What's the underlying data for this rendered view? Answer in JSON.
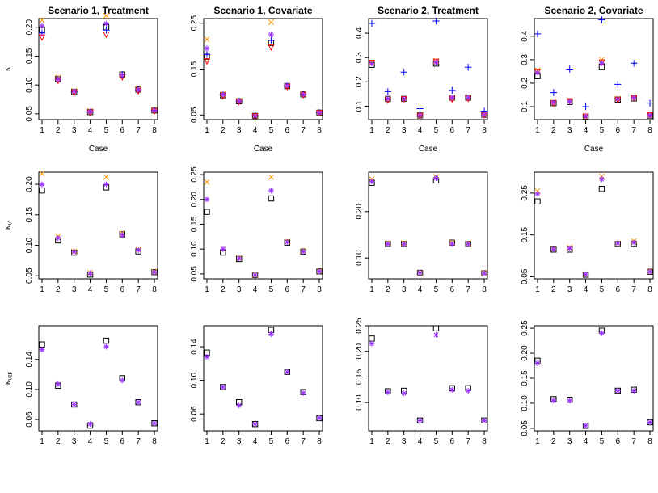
{
  "figure": {
    "row_ylabels": [
      {
        "main": "κ",
        "sub": ""
      },
      {
        "main": "κ",
        "sub": "V"
      },
      {
        "main": "κ",
        "sub": "VIF"
      }
    ]
  },
  "chart_data": [
    {
      "type": "scatter",
      "title": "Scenario 1, Treatment",
      "xlabel": "Case",
      "ylabel": "κ",
      "ylim": [
        0.04,
        0.215
      ],
      "yticks": [
        0.05,
        0.1,
        0.15,
        0.2
      ],
      "ytick_labels": [
        "0.05",
        "0.10",
        "0.15",
        "0.20"
      ],
      "x": [
        1,
        2,
        3,
        4,
        5,
        6,
        7,
        8
      ],
      "series": [
        {
          "name": "square",
          "marker": "square",
          "color": "#000000",
          "values": [
            0.195,
            0.11,
            0.088,
            0.053,
            0.2,
            0.118,
            0.092,
            0.056
          ]
        },
        {
          "name": "cross",
          "marker": "x",
          "color": "#ff9900",
          "values": [
            0.212,
            0.113,
            0.09,
            0.055,
            0.22,
            0.117,
            0.093,
            0.057
          ]
        },
        {
          "name": "plus",
          "marker": "plus",
          "color": "#0000ff",
          "values": [
            0.19,
            0.11,
            0.088,
            0.053,
            0.195,
            0.118,
            0.092,
            0.056
          ]
        },
        {
          "name": "triangle",
          "marker": "triangle-down",
          "color": "#ff0000",
          "values": [
            0.183,
            0.108,
            0.087,
            0.053,
            0.188,
            0.114,
            0.09,
            0.055
          ]
        },
        {
          "name": "star",
          "marker": "star",
          "color": "#9933ff",
          "values": [
            0.202,
            0.11,
            0.089,
            0.054,
            0.206,
            0.117,
            0.092,
            0.056
          ]
        }
      ]
    },
    {
      "type": "scatter",
      "title": "Scenario 1, Covariate",
      "xlabel": "Case",
      "ylabel": "κ",
      "ylim": [
        0.04,
        0.26
      ],
      "yticks": [
        0.05,
        0.15,
        0.25
      ],
      "ytick_labels": [
        "0.05",
        "0.15",
        "0.25"
      ],
      "x": [
        1,
        2,
        3,
        4,
        5,
        6,
        7,
        8
      ],
      "series": [
        {
          "name": "square",
          "marker": "square",
          "color": "#000000",
          "values": [
            0.177,
            0.093,
            0.08,
            0.048,
            0.207,
            0.113,
            0.095,
            0.055
          ]
        },
        {
          "name": "cross",
          "marker": "x",
          "color": "#ff9900",
          "values": [
            0.215,
            0.096,
            0.081,
            0.048,
            0.252,
            0.114,
            0.096,
            0.056
          ]
        },
        {
          "name": "plus",
          "marker": "plus",
          "color": "#0000ff",
          "values": [
            0.182,
            0.094,
            0.08,
            0.048,
            0.213,
            0.113,
            0.095,
            0.055
          ]
        },
        {
          "name": "triangle",
          "marker": "triangle-down",
          "color": "#ff0000",
          "values": [
            0.168,
            0.092,
            0.079,
            0.048,
            0.198,
            0.112,
            0.094,
            0.055
          ]
        },
        {
          "name": "star",
          "marker": "star",
          "color": "#9933ff",
          "values": [
            0.195,
            0.095,
            0.08,
            0.048,
            0.225,
            0.114,
            0.095,
            0.055
          ]
        }
      ]
    },
    {
      "type": "scatter",
      "title": "Scenario 2, Treatment",
      "ylabel": "κ",
      "xlabel": "Case",
      "ylim": [
        0.045,
        0.46
      ],
      "yticks": [
        0.1,
        0.2,
        0.3,
        0.4
      ],
      "ytick_labels": [
        "0.1",
        "0.2",
        "0.3",
        "0.4"
      ],
      "x": [
        1,
        2,
        3,
        4,
        5,
        6,
        7,
        8
      ],
      "series": [
        {
          "name": "square",
          "marker": "square",
          "color": "#000000",
          "values": [
            0.27,
            0.13,
            0.13,
            0.062,
            0.275,
            0.135,
            0.135,
            0.065
          ]
        },
        {
          "name": "cross",
          "marker": "x",
          "color": "#ff9900",
          "values": [
            0.28,
            0.13,
            0.13,
            0.063,
            0.285,
            0.135,
            0.137,
            0.066
          ]
        },
        {
          "name": "plus",
          "marker": "plus",
          "color": "#0000ff",
          "values": [
            0.44,
            0.16,
            0.24,
            0.09,
            0.45,
            0.165,
            0.26,
            0.08
          ]
        },
        {
          "name": "triangle",
          "marker": "triangle-down",
          "color": "#ff0000",
          "values": [
            0.28,
            0.125,
            0.13,
            0.062,
            0.285,
            0.13,
            0.132,
            0.065
          ]
        },
        {
          "name": "star",
          "marker": "star",
          "color": "#9933ff",
          "values": [
            0.275,
            0.13,
            0.13,
            0.063,
            0.28,
            0.135,
            0.135,
            0.065
          ]
        }
      ]
    },
    {
      "type": "scatter",
      "title": "Scenario 2, Covariate",
      "ylabel": "κ",
      "xlabel": "Case",
      "ylim": [
        0.045,
        0.475
      ],
      "yticks": [
        0.1,
        0.2,
        0.3,
        0.4
      ],
      "ytick_labels": [
        "0.1",
        "0.2",
        "0.3",
        "0.4"
      ],
      "x": [
        1,
        2,
        3,
        4,
        5,
        6,
        7,
        8
      ],
      "series": [
        {
          "name": "square",
          "marker": "square",
          "color": "#000000",
          "values": [
            0.23,
            0.115,
            0.12,
            0.058,
            0.27,
            0.13,
            0.135,
            0.062
          ]
        },
        {
          "name": "cross",
          "marker": "x",
          "color": "#ff9900",
          "values": [
            0.255,
            0.12,
            0.125,
            0.06,
            0.3,
            0.135,
            0.14,
            0.065
          ]
        },
        {
          "name": "plus",
          "marker": "plus",
          "color": "#0000ff",
          "values": [
            0.41,
            0.16,
            0.26,
            0.1,
            0.47,
            0.195,
            0.285,
            0.115
          ]
        },
        {
          "name": "triangle",
          "marker": "triangle-down",
          "color": "#ff0000",
          "values": [
            0.25,
            0.115,
            0.125,
            0.06,
            0.29,
            0.13,
            0.138,
            0.065
          ]
        },
        {
          "name": "star",
          "marker": "star",
          "color": "#9933ff",
          "values": [
            0.245,
            0.118,
            0.122,
            0.059,
            0.285,
            0.132,
            0.138,
            0.063
          ]
        }
      ]
    },
    {
      "type": "scatter",
      "title": "",
      "xlabel": "",
      "ylabel": "κ_V",
      "ylim": [
        0.045,
        0.22
      ],
      "yticks": [
        0.05,
        0.1,
        0.15,
        0.2
      ],
      "ytick_labels": [
        "0.05",
        "0.10",
        "0.15",
        "0.20"
      ],
      "x": [
        1,
        2,
        3,
        4,
        5,
        6,
        7,
        8
      ],
      "series": [
        {
          "name": "square",
          "marker": "square",
          "color": "#000000",
          "values": [
            0.19,
            0.108,
            0.088,
            0.052,
            0.195,
            0.118,
            0.09,
            0.056
          ]
        },
        {
          "name": "cross",
          "marker": "x",
          "color": "#ff9900",
          "values": [
            0.218,
            0.115,
            0.09,
            0.055,
            0.212,
            0.12,
            0.093,
            0.057
          ]
        },
        {
          "name": "star",
          "marker": "star",
          "color": "#9933ff",
          "values": [
            0.2,
            0.112,
            0.089,
            0.054,
            0.2,
            0.117,
            0.092,
            0.056
          ]
        }
      ]
    },
    {
      "type": "scatter",
      "title": "",
      "xlabel": "",
      "ylabel": "κ_V",
      "ylim": [
        0.04,
        0.255
      ],
      "yticks": [
        0.05,
        0.1,
        0.15,
        0.2,
        0.25
      ],
      "ytick_labels": [
        "0.05",
        "0.10",
        "0.15",
        "0.20",
        "0.25"
      ],
      "x": [
        1,
        2,
        3,
        4,
        5,
        6,
        7,
        8
      ],
      "series": [
        {
          "name": "square",
          "marker": "square",
          "color": "#000000",
          "values": [
            0.175,
            0.093,
            0.08,
            0.048,
            0.202,
            0.113,
            0.095,
            0.055
          ]
        },
        {
          "name": "cross",
          "marker": "x",
          "color": "#ff9900",
          "values": [
            0.235,
            0.1,
            0.082,
            0.048,
            0.245,
            0.115,
            0.096,
            0.056
          ]
        },
        {
          "name": "star",
          "marker": "star",
          "color": "#9933ff",
          "values": [
            0.2,
            0.1,
            0.081,
            0.048,
            0.218,
            0.114,
            0.095,
            0.055
          ]
        }
      ]
    },
    {
      "type": "scatter",
      "title": "",
      "xlabel": "",
      "ylabel": "κ_V",
      "ylim": [
        0.055,
        0.285
      ],
      "yticks": [
        0.1,
        0.2
      ],
      "ytick_labels": [
        "0.10",
        "0.20"
      ],
      "x": [
        1,
        2,
        3,
        4,
        5,
        6,
        7,
        8
      ],
      "series": [
        {
          "name": "square",
          "marker": "square",
          "color": "#000000",
          "values": [
            0.262,
            0.13,
            0.13,
            0.068,
            0.267,
            0.133,
            0.13,
            0.067
          ]
        },
        {
          "name": "cross",
          "marker": "x",
          "color": "#ff9900",
          "values": [
            0.27,
            0.132,
            0.132,
            0.068,
            0.275,
            0.133,
            0.132,
            0.068
          ]
        },
        {
          "name": "star",
          "marker": "star",
          "color": "#9933ff",
          "values": [
            0.265,
            0.13,
            0.13,
            0.068,
            0.272,
            0.13,
            0.13,
            0.067
          ]
        }
      ]
    },
    {
      "type": "scatter",
      "title": "",
      "xlabel": "",
      "ylabel": "κ_V",
      "ylim": [
        0.045,
        0.3
      ],
      "yticks": [
        0.05,
        0.15,
        0.25
      ],
      "ytick_labels": [
        "0.05",
        "0.15",
        "0.25"
      ],
      "x": [
        1,
        2,
        3,
        4,
        5,
        6,
        7,
        8
      ],
      "series": [
        {
          "name": "square",
          "marker": "square",
          "color": "#000000",
          "values": [
            0.23,
            0.115,
            0.115,
            0.055,
            0.26,
            0.128,
            0.128,
            0.062
          ]
        },
        {
          "name": "cross",
          "marker": "x",
          "color": "#ff9900",
          "values": [
            0.255,
            0.117,
            0.12,
            0.056,
            0.29,
            0.13,
            0.135,
            0.063
          ]
        },
        {
          "name": "star",
          "marker": "star",
          "color": "#9933ff",
          "values": [
            0.248,
            0.116,
            0.118,
            0.056,
            0.283,
            0.13,
            0.132,
            0.062
          ]
        }
      ]
    },
    {
      "type": "scatter",
      "title": "",
      "xlabel": "",
      "ylabel": "κ_VIF",
      "ylim": [
        0.045,
        0.185
      ],
      "yticks": [
        0.06,
        0.1,
        0.14
      ],
      "ytick_labels": [
        "0.06",
        "0.10",
        "0.14"
      ],
      "x": [
        1,
        2,
        3,
        4,
        5,
        6,
        7,
        8
      ],
      "series": [
        {
          "name": "square",
          "marker": "square",
          "color": "#000000",
          "values": [
            0.16,
            0.105,
            0.08,
            0.052,
            0.165,
            0.115,
            0.083,
            0.055
          ]
        },
        {
          "name": "star",
          "marker": "star",
          "color": "#9933ff",
          "values": [
            0.153,
            0.107,
            0.08,
            0.054,
            0.157,
            0.112,
            0.083,
            0.055
          ]
        }
      ]
    },
    {
      "type": "scatter",
      "title": "",
      "xlabel": "",
      "ylabel": "κ_VIF",
      "ylim": [
        0.04,
        0.165
      ],
      "yticks": [
        0.06,
        0.1,
        0.14
      ],
      "ytick_labels": [
        "0.06",
        "0.10",
        "0.14"
      ],
      "x": [
        1,
        2,
        3,
        4,
        5,
        6,
        7,
        8
      ],
      "series": [
        {
          "name": "square",
          "marker": "square",
          "color": "#000000",
          "values": [
            0.133,
            0.092,
            0.074,
            0.048,
            0.16,
            0.11,
            0.086,
            0.055
          ]
        },
        {
          "name": "star",
          "marker": "star",
          "color": "#9933ff",
          "values": [
            0.128,
            0.092,
            0.07,
            0.048,
            0.155,
            0.11,
            0.085,
            0.055
          ]
        }
      ]
    },
    {
      "type": "scatter",
      "title": "",
      "xlabel": "",
      "ylabel": "κ_VIF",
      "ylim": [
        0.045,
        0.25
      ],
      "yticks": [
        0.1,
        0.15,
        0.2,
        0.25
      ],
      "ytick_labels": [
        "0.10",
        "0.15",
        "0.20",
        "0.25"
      ],
      "x": [
        1,
        2,
        3,
        4,
        5,
        6,
        7,
        8
      ],
      "series": [
        {
          "name": "square",
          "marker": "square",
          "color": "#000000",
          "values": [
            0.225,
            0.122,
            0.123,
            0.065,
            0.245,
            0.128,
            0.128,
            0.065
          ]
        },
        {
          "name": "star",
          "marker": "star",
          "color": "#9933ff",
          "values": [
            0.215,
            0.12,
            0.118,
            0.065,
            0.232,
            0.125,
            0.123,
            0.065
          ]
        }
      ]
    },
    {
      "type": "scatter",
      "title": "",
      "xlabel": "",
      "ylabel": "κ_VIF",
      "ylim": [
        0.045,
        0.255
      ],
      "yticks": [
        0.05,
        0.1,
        0.15,
        0.2,
        0.25
      ],
      "ytick_labels": [
        "0.05",
        "0.10",
        "0.15",
        "0.20",
        "0.25"
      ],
      "x": [
        1,
        2,
        3,
        4,
        5,
        6,
        7,
        8
      ],
      "series": [
        {
          "name": "square",
          "marker": "square",
          "color": "#000000",
          "values": [
            0.185,
            0.108,
            0.107,
            0.055,
            0.245,
            0.125,
            0.127,
            0.062
          ]
        },
        {
          "name": "star",
          "marker": "star",
          "color": "#9933ff",
          "values": [
            0.18,
            0.105,
            0.105,
            0.055,
            0.24,
            0.125,
            0.125,
            0.062
          ]
        }
      ]
    }
  ]
}
